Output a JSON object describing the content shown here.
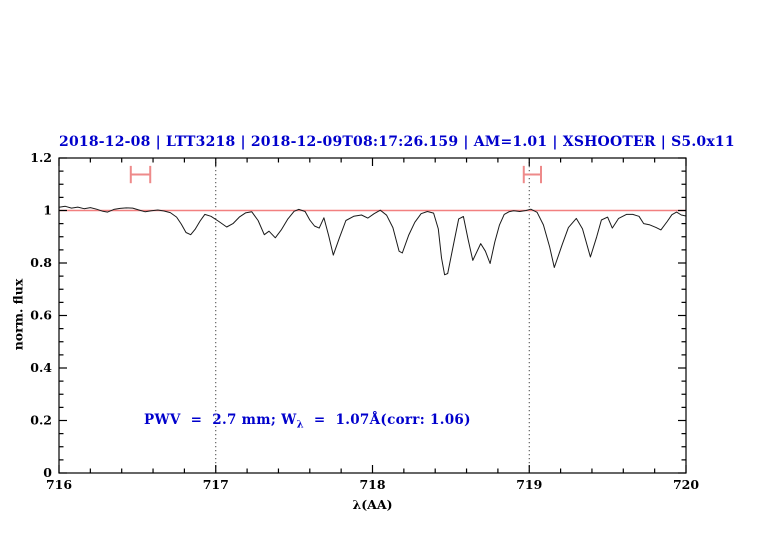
{
  "colors": {
    "accent_text": "#0000cc",
    "continuum": "#f28080",
    "marker": "#ee8a8a",
    "spectrum": "#1a1a1a",
    "frame": "#000000",
    "dotted_line": "#444444",
    "background": "#ffffff"
  },
  "annotation_parts": {
    "prefix": "PWV  =  2.7 mm; W",
    "sub": "λ",
    "suffix": "  =  1.07Å(corr: 1.06)"
  },
  "chart_data": {
    "type": "line",
    "title": "2018-12-08 | LTT3218 | 2018-12-09T08:17:26.159 | AM=1.01 | XSHOOTER | S5.0x11",
    "xlabel": "λ(AA)",
    "ylabel": "norm. flux",
    "xlim": [
      716,
      720
    ],
    "ylim": [
      0,
      1.2
    ],
    "grid": "off",
    "legend": "none",
    "x_major_ticks": [
      716,
      717,
      718,
      719,
      720
    ],
    "x_tick_labels": [
      "716",
      "717",
      "718",
      "719",
      "720"
    ],
    "x_minor_step": 0.2,
    "y_major_ticks": [
      0,
      0.2,
      0.4,
      0.6,
      0.8,
      1,
      1.2
    ],
    "y_tick_labels": [
      "0",
      "0.2",
      "0.4",
      "0.6",
      "0.8",
      "1",
      "1.2"
    ],
    "y_minor_step": 0.05,
    "dotted_vlines_x": [
      717,
      719
    ],
    "continuum_line": {
      "flux": 1.0,
      "color": "#f28080"
    },
    "band_markers": [
      {
        "x_center": 716.52,
        "x_half_width": 0.062,
        "y_center": 1.137,
        "cap_half_height": 0.033,
        "color": "#ee8a8a"
      },
      {
        "x_center": 719.02,
        "x_half_width": 0.055,
        "y_center": 1.137,
        "cap_half_height": 0.033,
        "color": "#ee8a8a"
      }
    ],
    "annotation": {
      "text": "PWV  =  2.7 mm; W_λ  =  1.07Å(corr: 1.06)",
      "x": 716.55,
      "y": 0.2,
      "color": "#0000cc"
    },
    "series": [
      {
        "name": "normalized-telluric-spectrum",
        "color": "#1a1a1a",
        "x": [
          716.0,
          716.04,
          716.08,
          716.12,
          716.16,
          716.2,
          716.24,
          716.28,
          716.31,
          716.35,
          716.39,
          716.43,
          716.47,
          716.51,
          716.55,
          716.59,
          716.63,
          716.67,
          716.71,
          716.75,
          716.78,
          716.81,
          716.84,
          716.87,
          716.9,
          716.93,
          716.97,
          717.02,
          717.07,
          717.11,
          717.15,
          717.19,
          717.23,
          717.27,
          717.31,
          717.34,
          717.38,
          717.42,
          717.46,
          717.5,
          717.53,
          717.57,
          717.6,
          717.63,
          717.66,
          717.69,
          717.72,
          717.75,
          717.79,
          717.83,
          717.88,
          717.93,
          717.97,
          718.01,
          718.05,
          718.09,
          718.13,
          718.17,
          718.19,
          718.23,
          718.27,
          718.31,
          718.35,
          718.39,
          718.42,
          718.44,
          718.46,
          718.48,
          718.52,
          718.55,
          718.58,
          718.61,
          718.64,
          718.69,
          718.72,
          718.75,
          718.78,
          718.81,
          718.84,
          718.87,
          718.9,
          718.94,
          718.98,
          719.01,
          719.05,
          719.09,
          719.13,
          719.16,
          719.21,
          719.25,
          719.3,
          719.34,
          719.39,
          719.43,
          719.46,
          719.5,
          719.53,
          719.57,
          719.62,
          719.66,
          719.7,
          719.73,
          719.77,
          719.81,
          719.84,
          719.88,
          719.91,
          719.94,
          719.97,
          720.0
        ],
        "y": [
          1.012,
          1.016,
          1.009,
          1.013,
          1.007,
          1.011,
          1.005,
          0.997,
          0.994,
          1.004,
          1.008,
          1.01,
          1.009,
          1.002,
          0.995,
          0.999,
          1.002,
          0.998,
          0.992,
          0.975,
          0.948,
          0.916,
          0.908,
          0.93,
          0.96,
          0.985,
          0.978,
          0.958,
          0.937,
          0.95,
          0.975,
          0.991,
          0.995,
          0.962,
          0.908,
          0.921,
          0.896,
          0.928,
          0.968,
          0.997,
          1.004,
          0.996,
          0.964,
          0.941,
          0.933,
          0.972,
          0.905,
          0.83,
          0.898,
          0.962,
          0.978,
          0.983,
          0.971,
          0.988,
          1.001,
          0.982,
          0.935,
          0.845,
          0.838,
          0.905,
          0.955,
          0.988,
          0.996,
          0.99,
          0.93,
          0.82,
          0.755,
          0.76,
          0.88,
          0.968,
          0.977,
          0.89,
          0.81,
          0.874,
          0.845,
          0.798,
          0.88,
          0.945,
          0.985,
          0.995,
          0.999,
          0.996,
          1.0,
          1.005,
          0.993,
          0.945,
          0.862,
          0.783,
          0.87,
          0.935,
          0.97,
          0.93,
          0.823,
          0.9,
          0.964,
          0.975,
          0.933,
          0.97,
          0.985,
          0.985,
          0.978,
          0.95,
          0.945,
          0.935,
          0.926,
          0.958,
          0.984,
          0.994,
          0.983,
          0.979
        ]
      }
    ]
  }
}
